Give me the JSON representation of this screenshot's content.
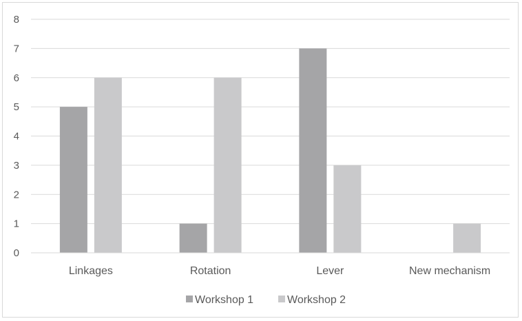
{
  "chart_data": {
    "type": "bar",
    "title": "",
    "xlabel": "",
    "ylabel": "",
    "categories": [
      "Linkages",
      "Rotation",
      "Lever",
      "New mechanism"
    ],
    "series": [
      {
        "name": "Workshop 1",
        "values": [
          5,
          1,
          7,
          0
        ],
        "color": "#a5a5a7"
      },
      {
        "name": "Workshop 2",
        "values": [
          6,
          6,
          3,
          1
        ],
        "color": "#c9c9cb"
      }
    ],
    "ylim": [
      0,
      8
    ],
    "yticks": [
      "0",
      "1",
      "2",
      "3",
      "4",
      "5",
      "6",
      "7",
      "8"
    ],
    "grid": true,
    "legend_position": "bottom"
  }
}
